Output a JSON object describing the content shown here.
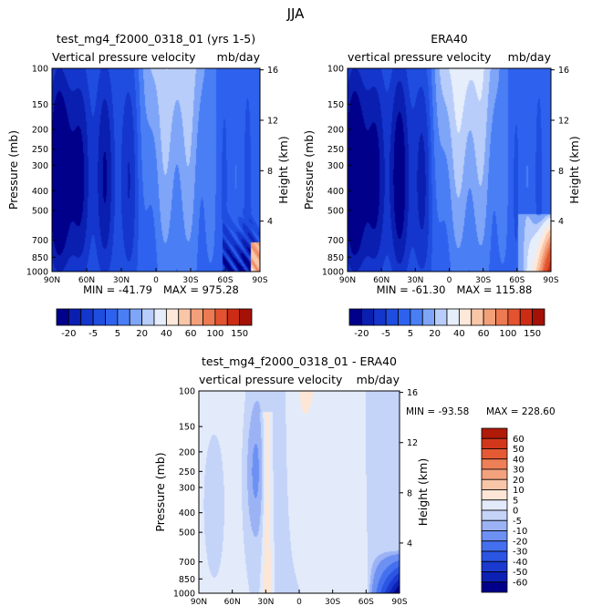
{
  "page": {
    "title": "JJA"
  },
  "colors": {
    "full_scale": [
      "#00008b",
      "#0a1fb0",
      "#1436cc",
      "#1f4de0",
      "#2e62ee",
      "#4a7ef5",
      "#7ea5f7",
      "#b8cdf9",
      "#e6eefc",
      "#fde8d9",
      "#f9c6a8",
      "#f3a07a",
      "#ec7a52",
      "#e3532f",
      "#cc2c14",
      "#a51007",
      "#7d0000"
    ],
    "diff_scale": [
      "#00008b",
      "#0c20b4",
      "#1a3acf",
      "#2b55e3",
      "#4470ef",
      "#6d90f3",
      "#9bb3f5",
      "#c4d3f8",
      "#e3ebfb",
      "#fde6d6",
      "#f9c6a8",
      "#f4a27e",
      "#ee7f57",
      "#e55a34",
      "#d2371b",
      "#b01a08",
      "#8c0000"
    ]
  },
  "chart_data": [
    {
      "id": "model",
      "type": "heatmap",
      "title": "test_mg4_f2000_0318_01 (yrs 1-5)",
      "subtitle_left": "Vertical pressure velocity",
      "subtitle_right": "mb/day",
      "xlabel": "",
      "ylabel": "Pressure (mb)",
      "y2label": "Height (km)",
      "x_ticks": [
        "90N",
        "60N",
        "30N",
        "0",
        "30S",
        "60S",
        "90S"
      ],
      "y_ticks": [
        "100",
        "150",
        "200",
        "250",
        "300",
        "400",
        "500",
        "700",
        "850",
        "1000"
      ],
      "y2_ticks": [
        "16",
        "12",
        "8",
        "4"
      ],
      "xlim": [
        90,
        -90
      ],
      "ylim": [
        1000,
        100
      ],
      "min": -41.79,
      "max": 975.28,
      "min_label": "MIN = -41.79",
      "max_label": "MAX = 975.28",
      "levels": [
        -25,
        -20,
        -15,
        -10,
        -5,
        0,
        5,
        10,
        20,
        30,
        40,
        50,
        60,
        80,
        100,
        125,
        150
      ]
    },
    {
      "id": "obs",
      "type": "heatmap",
      "title": "ERA40",
      "subtitle_left": "vertical pressure velocity",
      "subtitle_right": "mb/day",
      "xlabel": "",
      "ylabel": "Pressure (mb)",
      "y2label": "Height (km)",
      "x_ticks": [
        "90N",
        "60N",
        "30N",
        "0",
        "30S",
        "60S",
        "90S"
      ],
      "y_ticks": [
        "100",
        "150",
        "200",
        "250",
        "300",
        "400",
        "500",
        "700",
        "850",
        "1000"
      ],
      "y2_ticks": [
        "16",
        "12",
        "8",
        "4"
      ],
      "xlim": [
        90,
        -90
      ],
      "ylim": [
        1000,
        100
      ],
      "min": -61.3,
      "max": 115.88,
      "min_label": "MIN = -61.30",
      "max_label": "MAX = 115.88",
      "levels": [
        -25,
        -20,
        -15,
        -10,
        -5,
        0,
        5,
        10,
        20,
        30,
        40,
        50,
        60,
        80,
        100,
        125,
        150
      ]
    },
    {
      "id": "diff",
      "type": "heatmap",
      "title": "test_mg4_f2000_0318_01 - ERA40",
      "subtitle_left": "vertical pressure velocity",
      "subtitle_right": "mb/day",
      "xlabel": "",
      "ylabel": "Pressure (mb)",
      "y2label": "Height (km)",
      "x_ticks": [
        "90N",
        "60N",
        "30N",
        "0",
        "30S",
        "60S",
        "90S"
      ],
      "y_ticks": [
        "100",
        "150",
        "200",
        "250",
        "300",
        "400",
        "500",
        "700",
        "850",
        "1000"
      ],
      "y2_ticks": [
        "16",
        "12",
        "8",
        "4"
      ],
      "xlim": [
        90,
        -90
      ],
      "ylim": [
        1000,
        100
      ],
      "min": -93.58,
      "max": 228.6,
      "min_label": "MIN = -93.58",
      "max_label": "MAX = 228.60",
      "levels": [
        -60,
        -50,
        -40,
        -30,
        -20,
        -10,
        -5,
        0,
        5,
        10,
        20,
        30,
        40,
        50,
        60
      ]
    }
  ],
  "colorbars": {
    "top": {
      "tick_labels": [
        "-20",
        "-5",
        "5",
        "20",
        "40",
        "60",
        "100",
        "150"
      ]
    },
    "diff": {
      "tick_labels": [
        "60",
        "50",
        "40",
        "30",
        "20",
        "10",
        "5",
        "0",
        "-5",
        "-10",
        "-20",
        "-30",
        "-40",
        "-50",
        "-60"
      ]
    }
  }
}
